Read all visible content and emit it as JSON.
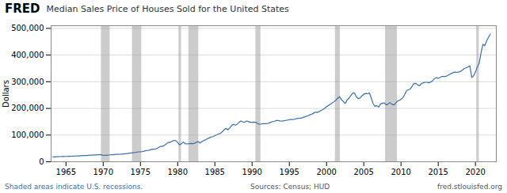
{
  "chart_data": {
    "type": "line",
    "title": "Median Sales Price of Houses Sold for the United States",
    "ylabel": "Dollars",
    "annotations": [
      "FRED",
      "Shaded areas indicate U.S. recessions.",
      "Sources: Census; HUD",
      "fred.stlouisfed.org"
    ],
    "color": "#3a6ea8",
    "grid": true,
    "xlim": [
      1963.0,
      2022.8
    ],
    "ylim": [
      0,
      510000
    ],
    "xticks": [
      1965,
      1970,
      1975,
      1980,
      1985,
      1990,
      1995,
      2000,
      2005,
      2010,
      2015,
      2020
    ],
    "yticks": [
      0,
      {
        "value": 100000,
        "label": "100,000"
      },
      {
        "value": 200000,
        "label": "200,000"
      },
      {
        "value": 300000,
        "label": "300,000"
      },
      {
        "value": 400000,
        "label": "400,000"
      },
      {
        "value": 500000,
        "label": "500,000"
      }
    ],
    "recessions": {
      "color": "#cccccc",
      "spans": [
        [
          1969.75,
          1970.92
        ],
        [
          1973.92,
          1975.17
        ],
        [
          1980.17,
          1980.5
        ],
        [
          1981.5,
          1982.83
        ],
        [
          1990.5,
          1991.17
        ],
        [
          2001.17,
          2001.83
        ],
        [
          2007.92,
          2009.5
        ],
        [
          2020.17,
          2020.5
        ]
      ]
    },
    "x": [
      1963.25,
      1963.5,
      1963.75,
      1964.0,
      1964.25,
      1964.5,
      1964.75,
      1965.0,
      1965.25,
      1965.5,
      1965.75,
      1966.0,
      1966.25,
      1966.5,
      1966.75,
      1967.0,
      1967.25,
      1967.5,
      1967.75,
      1968.0,
      1968.25,
      1968.5,
      1968.75,
      1969.0,
      1969.25,
      1969.5,
      1969.75,
      1970.0,
      1970.25,
      1970.5,
      1970.75,
      1971.0,
      1971.25,
      1971.5,
      1971.75,
      1972.0,
      1972.25,
      1972.5,
      1972.75,
      1973.0,
      1973.25,
      1973.5,
      1973.75,
      1974.0,
      1974.25,
      1974.5,
      1974.75,
      1975.0,
      1975.25,
      1975.5,
      1975.75,
      1976.0,
      1976.25,
      1976.5,
      1976.75,
      1977.0,
      1977.25,
      1977.5,
      1977.75,
      1978.0,
      1978.25,
      1978.5,
      1978.75,
      1979.0,
      1979.25,
      1979.5,
      1979.75,
      1980.0,
      1980.25,
      1980.5,
      1980.75,
      1981.0,
      1981.25,
      1981.5,
      1981.75,
      1982.0,
      1982.25,
      1982.5,
      1982.75,
      1983.0,
      1983.25,
      1983.5,
      1983.75,
      1984.0,
      1984.25,
      1984.5,
      1984.75,
      1985.0,
      1985.25,
      1985.5,
      1985.75,
      1986.0,
      1986.25,
      1986.5,
      1986.75,
      1987.0,
      1987.25,
      1987.5,
      1987.75,
      1988.0,
      1988.25,
      1988.5,
      1988.75,
      1989.0,
      1989.25,
      1989.5,
      1989.75,
      1990.0,
      1990.25,
      1990.5,
      1990.75,
      1991.0,
      1991.25,
      1991.5,
      1991.75,
      1992.0,
      1992.25,
      1992.5,
      1992.75,
      1993.0,
      1993.25,
      1993.5,
      1993.75,
      1994.0,
      1994.25,
      1994.5,
      1994.75,
      1995.0,
      1995.25,
      1995.5,
      1995.75,
      1996.0,
      1996.25,
      1996.5,
      1996.75,
      1997.0,
      1997.25,
      1997.5,
      1997.75,
      1998.0,
      1998.25,
      1998.5,
      1998.75,
      1999.0,
      1999.25,
      1999.5,
      1999.75,
      2000.0,
      2000.25,
      2000.5,
      2000.75,
      2001.0,
      2001.25,
      2001.5,
      2001.75,
      2002.0,
      2002.25,
      2002.5,
      2002.75,
      2003.0,
      2003.25,
      2003.5,
      2003.75,
      2004.0,
      2004.25,
      2004.5,
      2004.75,
      2005.0,
      2005.25,
      2005.5,
      2005.75,
      2006.0,
      2006.25,
      2006.5,
      2006.75,
      2007.0,
      2007.25,
      2007.5,
      2007.75,
      2008.0,
      2008.25,
      2008.5,
      2008.75,
      2009.0,
      2009.25,
      2009.5,
      2009.75,
      2010.0,
      2010.25,
      2010.5,
      2010.75,
      2011.0,
      2011.25,
      2011.5,
      2011.75,
      2012.0,
      2012.25,
      2012.5,
      2012.75,
      2013.0,
      2013.25,
      2013.5,
      2013.75,
      2014.0,
      2014.25,
      2014.5,
      2014.75,
      2015.0,
      2015.25,
      2015.5,
      2015.75,
      2016.0,
      2016.25,
      2016.5,
      2016.75,
      2017.0,
      2017.25,
      2017.5,
      2017.75,
      2018.0,
      2018.25,
      2018.5,
      2018.75,
      2019.0,
      2019.25,
      2019.5,
      2019.75,
      2020.0,
      2020.25,
      2020.5,
      2020.75,
      2021.0,
      2021.25,
      2021.5,
      2021.75,
      2022.0
    ],
    "values": [
      18000,
      18200,
      18700,
      18900,
      19300,
      19700,
      19900,
      20000,
      20200,
      20500,
      20800,
      21400,
      21500,
      21700,
      22000,
      22700,
      23100,
      23300,
      23600,
      24200,
      24700,
      25100,
      25500,
      25600,
      26200,
      26500,
      26800,
      23900,
      24000,
      24100,
      25200,
      25900,
      26500,
      27200,
      27600,
      27600,
      28100,
      28600,
      29200,
      29900,
      30700,
      32000,
      32800,
      33800,
      34900,
      35900,
      37100,
      37300,
      38300,
      39700,
      41800,
      42200,
      44300,
      46500,
      47200,
      48000,
      49700,
      54700,
      57900,
      58100,
      62500,
      67900,
      72000,
      72800,
      76900,
      80000,
      79000,
      72400,
      63700,
      67100,
      73800,
      68000,
      66800,
      67700,
      68500,
      68000,
      69300,
      72900,
      75300,
      70300,
      75600,
      79500,
      82000,
      86900,
      89400,
      93000,
      94100,
      97800,
      100800,
      104500,
      106300,
      112500,
      120000,
      125000,
      120000,
      127200,
      136000,
      140000,
      137000,
      141000,
      148000,
      153000,
      149000,
      148000,
      152600,
      151000,
      148000,
      148000,
      148500,
      148000,
      143000,
      140000,
      141500,
      143000,
      142500,
      143000,
      145000,
      148000,
      150500,
      152000,
      154500,
      155000,
      153000,
      152000,
      154000,
      155000,
      156000,
      158000,
      158000,
      158000,
      160000,
      162000,
      163000,
      163500,
      165000,
      168000,
      170000,
      172000,
      176000,
      178000,
      182000,
      186000,
      185000,
      188000,
      192000,
      196000,
      200000,
      206000,
      211000,
      216000,
      220000,
      225000,
      231000,
      238000,
      244000,
      233000,
      226000,
      218000,
      231000,
      238000,
      248000,
      257000,
      258000,
      243000,
      237000,
      239000,
      247000,
      253000,
      256000,
      255000,
      258000,
      240000,
      218000,
      208000,
      210000,
      205000,
      217000,
      219000,
      221000,
      213000,
      216000,
      222000,
      216000,
      213000,
      218000,
      227000,
      230000,
      234000,
      240000,
      252000,
      267000,
      270000,
      273000,
      284000,
      293000,
      294000,
      288000,
      285000,
      293000,
      296000,
      298000,
      298000,
      296000,
      299000,
      304000,
      312000,
      315000,
      313000,
      316000,
      320000,
      320000,
      320000,
      323000,
      327000,
      331000,
      334000,
      336000,
      335000,
      336000,
      339000,
      344000,
      349000,
      352000,
      355000,
      360000,
      316000,
      322000,
      337000,
      355000,
      369000,
      408000,
      440000,
      435000,
      453000,
      467000,
      479000
    ]
  }
}
